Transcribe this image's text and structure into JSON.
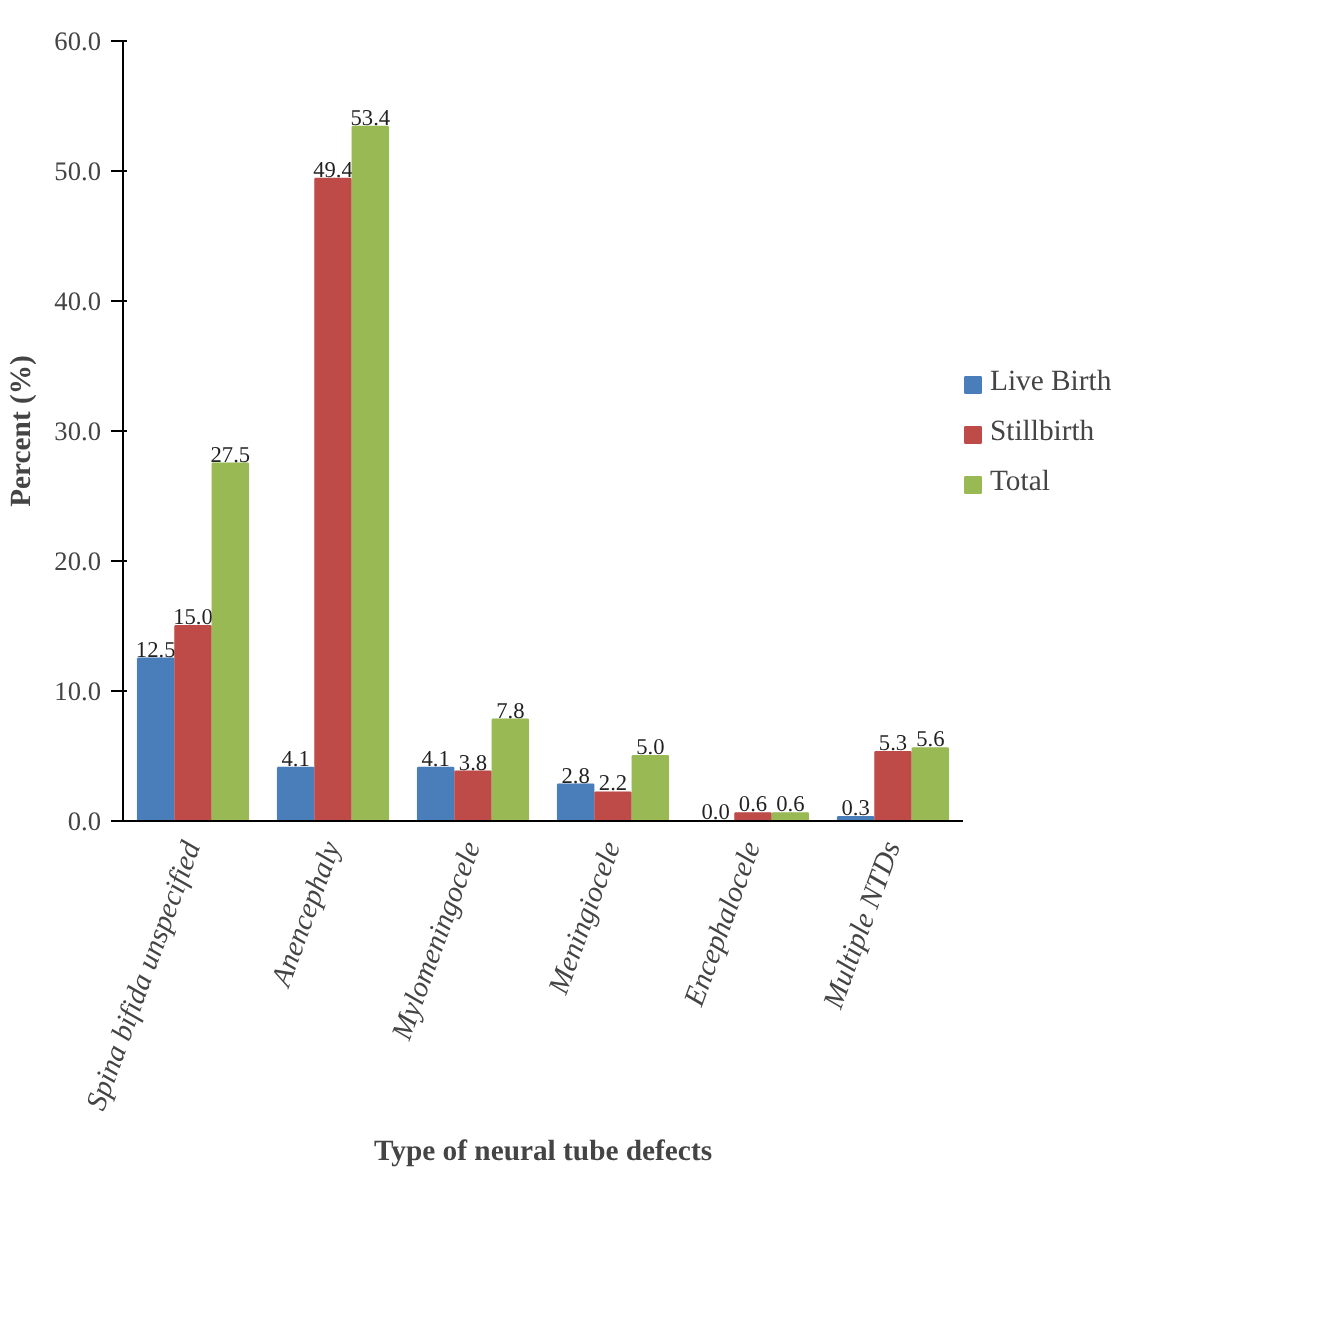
{
  "chart_data": {
    "type": "bar",
    "xlabel": "Type of neural tube defects",
    "ylabel": "Percent (%)",
    "categories": [
      "Spina bifida unspecified",
      "Anencephaly",
      "Mylomeningocele",
      "Meningiocele",
      "Encephalocele",
      "Multiple NTDs"
    ],
    "series": [
      {
        "name": "Live Birth",
        "color": "#4a7ebb",
        "values": [
          12.5,
          4.1,
          4.1,
          2.8,
          0.0,
          0.3
        ],
        "value_labels": [
          "12.5",
          "4.1",
          "4.1",
          "2.8",
          "0.0",
          "0.3"
        ]
      },
      {
        "name": "Stillbirth",
        "color": "#be4b48",
        "values": [
          15.0,
          49.4,
          3.8,
          2.2,
          0.6,
          5.3
        ],
        "value_labels": [
          "15.0",
          "49.4",
          "3.8",
          "2.2",
          "0.6",
          "5.3"
        ]
      },
      {
        "name": "Total",
        "color": "#98b954",
        "values": [
          27.5,
          53.4,
          7.8,
          5.0,
          0.6,
          5.6
        ],
        "value_labels": [
          "27.5",
          "53.4",
          "7.8",
          "5.0",
          "0.6",
          "5.6"
        ]
      }
    ],
    "ylim": [
      0,
      60
    ],
    "yticks": [
      {
        "value": 0,
        "label": "0.0"
      },
      {
        "value": 10,
        "label": "10.0"
      },
      {
        "value": 20,
        "label": "20.0"
      },
      {
        "value": 30,
        "label": "30.0"
      },
      {
        "value": 40,
        "label": "40.0"
      },
      {
        "value": 50,
        "label": "50.0"
      },
      {
        "value": 60,
        "label": "60.0"
      }
    ],
    "grid": false,
    "legend": "right"
  }
}
